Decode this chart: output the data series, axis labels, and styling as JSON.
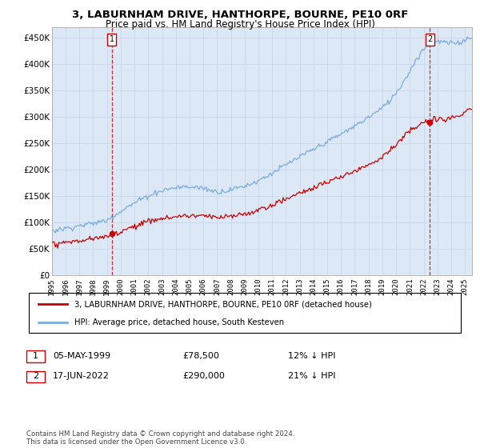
{
  "title": "3, LABURNHAM DRIVE, HANTHORPE, BOURNE, PE10 0RF",
  "subtitle": "Price paid vs. HM Land Registry's House Price Index (HPI)",
  "ylabel_ticks": [
    "£0",
    "£50K",
    "£100K",
    "£150K",
    "£200K",
    "£250K",
    "£300K",
    "£350K",
    "£400K",
    "£450K"
  ],
  "ytick_values": [
    0,
    50000,
    100000,
    150000,
    200000,
    250000,
    300000,
    350000,
    400000,
    450000
  ],
  "ylim": [
    0,
    470000
  ],
  "xlim_start": 1995.0,
  "xlim_end": 2025.5,
  "purchase1_x": 1999.35,
  "purchase1_y": 78500,
  "purchase2_x": 2022.46,
  "purchase2_y": 290000,
  "property_line_color": "#cc0000",
  "hpi_line_color": "#7aace0",
  "grid_color": "#c8d8e8",
  "bg_color": "#dce8f5",
  "background_color": "#ffffff",
  "legend_label_property": "3, LABURNHAM DRIVE, HANTHORPE, BOURNE, PE10 0RF (detached house)",
  "legend_label_hpi": "HPI: Average price, detached house, South Kesteven",
  "annotation1_date": "05-MAY-1999",
  "annotation1_price": "£78,500",
  "annotation1_hpi": "12% ↓ HPI",
  "annotation2_date": "17-JUN-2022",
  "annotation2_price": "£290,000",
  "annotation2_hpi": "21% ↓ HPI",
  "footer": "Contains HM Land Registry data © Crown copyright and database right 2024.\nThis data is licensed under the Open Government Licence v3.0.",
  "title_fontsize": 9.5,
  "subtitle_fontsize": 8.5,
  "tick_fontsize": 7.5,
  "xticklabels": [
    "1995",
    "1996",
    "1997",
    "1998",
    "1999",
    "2000",
    "2001",
    "2002",
    "2003",
    "2004",
    "2005",
    "2006",
    "2007",
    "2008",
    "2009",
    "2010",
    "2011",
    "2012",
    "2013",
    "2014",
    "2015",
    "2016",
    "2017",
    "2018",
    "2019",
    "2020",
    "2021",
    "2022",
    "2023",
    "2024",
    "2025"
  ]
}
